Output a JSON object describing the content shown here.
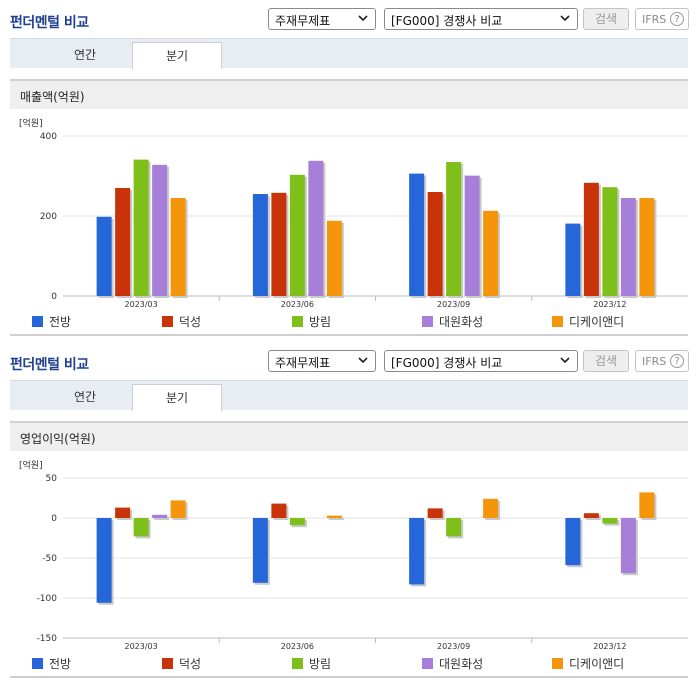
{
  "colors": {
    "title": "#1f3f8f",
    "series": [
      "#2566d8",
      "#c8330a",
      "#7ebf1a",
      "#a77fd9",
      "#f5950b"
    ]
  },
  "panels": [
    {
      "title": "펀더멘털 비교",
      "select1": "주재무제표",
      "select2": "[FG000] 경쟁사 비교",
      "search_label": "검색",
      "ifrs_label": "IFRS",
      "ifrs_help": "?",
      "tabs": [
        "연간",
        "분기"
      ],
      "active_tab": "분기",
      "metric": "매출액(억원)",
      "unit": "[억원]",
      "chart_data": {
        "type": "bar",
        "categories": [
          "2023/03",
          "2023/06",
          "2023/09",
          "2023/12"
        ],
        "ylim": [
          0,
          400
        ],
        "yticks": [
          0,
          200,
          400
        ],
        "series": [
          {
            "name": "전방",
            "values": [
              198,
              255,
              306,
              181
            ]
          },
          {
            "name": "덕성",
            "values": [
              270,
              258,
              260,
              283
            ]
          },
          {
            "name": "방림",
            "values": [
              341,
              303,
              335,
              272
            ]
          },
          {
            "name": "대원화성",
            "values": [
              328,
              338,
              301,
              245
            ]
          },
          {
            "name": "디케이앤디",
            "values": [
              245,
              188,
              213,
              245
            ]
          }
        ]
      }
    },
    {
      "title": "펀더멘털 비교",
      "select1": "주재무제표",
      "select2": "[FG000] 경쟁사 비교",
      "search_label": "검색",
      "ifrs_label": "IFRS",
      "ifrs_help": "?",
      "tabs": [
        "연간",
        "분기"
      ],
      "active_tab": "분기",
      "metric": "영업이익(억원)",
      "unit": "[억원]",
      "chart_data": {
        "type": "bar",
        "categories": [
          "2023/03",
          "2023/06",
          "2023/09",
          "2023/12"
        ],
        "ylim": [
          -150,
          50
        ],
        "yticks": [
          -150,
          -100,
          -50,
          0,
          50
        ],
        "series": [
          {
            "name": "전방",
            "values": [
              -106,
              -81,
              -83,
              -59
            ]
          },
          {
            "name": "덕성",
            "values": [
              13,
              18,
              12,
              6
            ]
          },
          {
            "name": "방림",
            "values": [
              -23,
              -9,
              -23,
              -7
            ]
          },
          {
            "name": "대원화성",
            "values": [
              4,
              0,
              0,
              -69
            ]
          },
          {
            "name": "디케이앤디",
            "values": [
              22,
              3,
              24,
              32
            ]
          }
        ]
      }
    }
  ]
}
